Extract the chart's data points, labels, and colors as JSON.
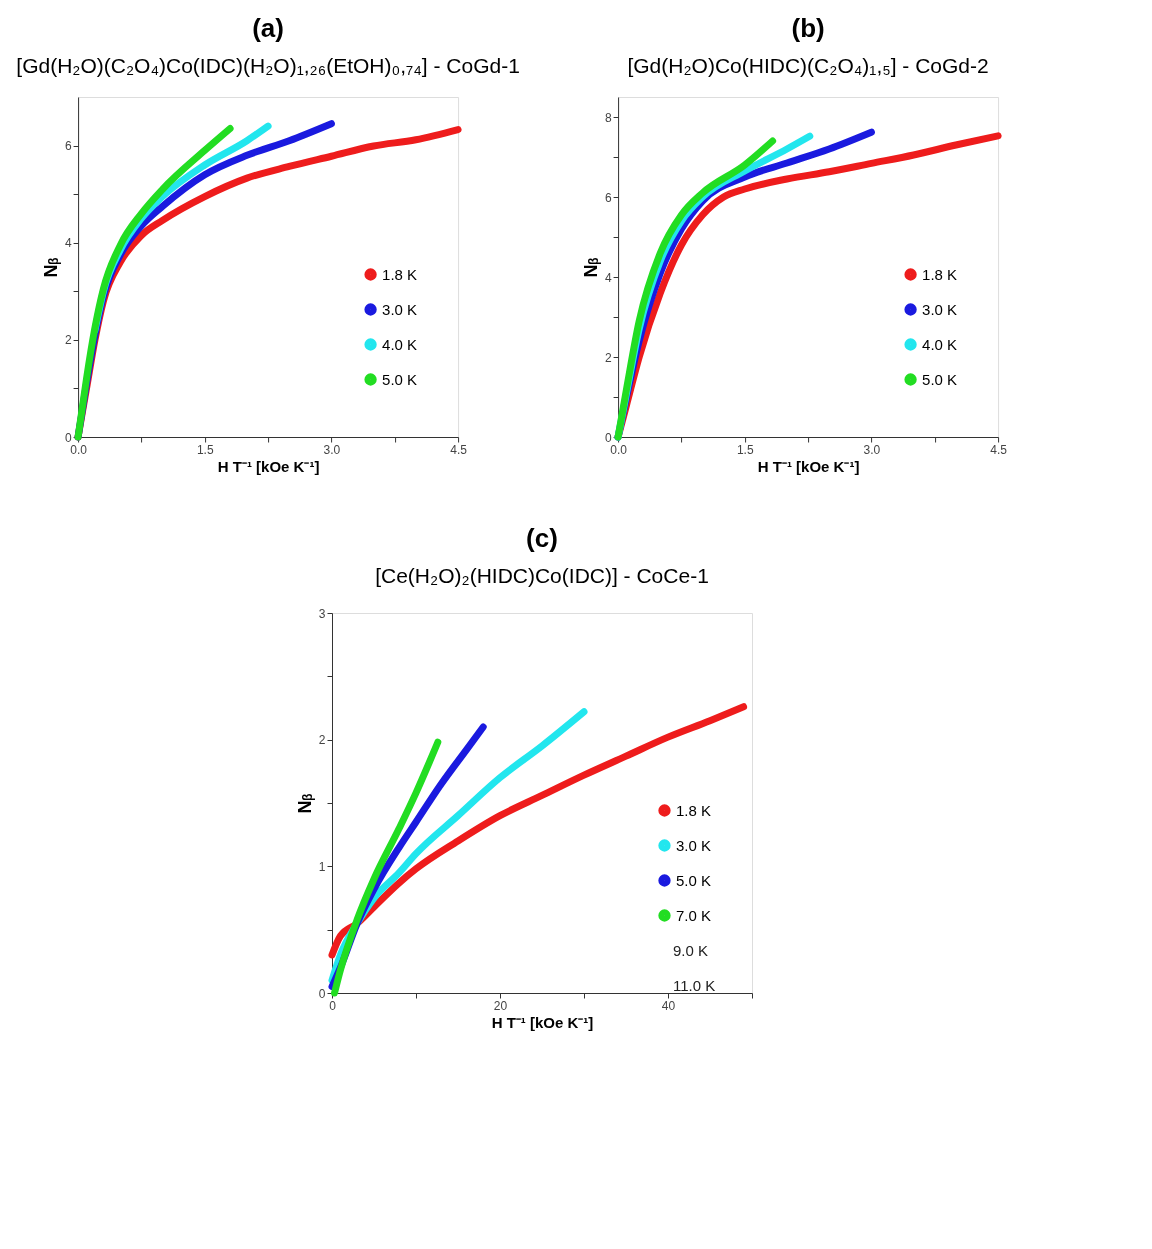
{
  "chart_data": [
    {
      "type": "line",
      "title": "(a)",
      "subtitle": "[Gd(H₂O)(C₂O₄)Co(IDC)(H₂O)₁,₂₆(EtOH)₀,₇₄] - CoGd-1",
      "xlabel": "H T⁻¹ [kOe K⁻¹]",
      "ylabel": "Nᵦ",
      "xlim": [
        0,
        4.5
      ],
      "xticks": [
        {
          "value": 0,
          "label": "0.0"
        },
        {
          "value": 0.75,
          "label": null
        },
        {
          "value": 1.5,
          "label": "1.5"
        },
        {
          "value": 2.25,
          "label": null
        },
        {
          "value": 3.0,
          "label": "3.0"
        },
        {
          "value": 3.75,
          "label": null
        },
        {
          "value": 4.5,
          "label": "4.5"
        }
      ],
      "ylim": [
        0,
        7
      ],
      "yticks": [
        0,
        {
          "value": 1,
          "label": null
        },
        2,
        {
          "value": 3,
          "label": null
        },
        4,
        {
          "value": 5,
          "label": null
        },
        6
      ],
      "grid": false,
      "legend": "bottom right",
      "marker": "none",
      "line_style": "solid",
      "series": [
        {
          "name": "1.8 K",
          "color": "#ee1c1c",
          "x": [
            0,
            0.05,
            0.1,
            0.2,
            0.3,
            0.5,
            0.75,
            1.0,
            1.5,
            2.0,
            2.5,
            3.0,
            3.5,
            4.0,
            4.5
          ],
          "values": [
            0,
            0.5,
            1.0,
            2.0,
            2.8,
            3.6,
            4.15,
            4.46,
            4.95,
            5.33,
            5.57,
            5.78,
            5.99,
            6.12,
            6.33
          ]
        },
        {
          "name": "3.0 K",
          "color": "#1a1adf",
          "x": [
            0,
            0.05,
            0.1,
            0.2,
            0.3,
            0.5,
            0.75,
            1.0,
            1.5,
            2.0,
            2.5,
            3.0
          ],
          "values": [
            0,
            0.55,
            1.1,
            2.1,
            2.9,
            3.75,
            4.35,
            4.75,
            5.4,
            5.8,
            6.1,
            6.45
          ]
        },
        {
          "name": "4.0 K",
          "color": "#22e6ee",
          "x": [
            0.2,
            0.3,
            0.5,
            0.75,
            1.0,
            1.5,
            2.0,
            2.25
          ],
          "values": [
            2.2,
            3.0,
            3.85,
            4.5,
            4.95,
            5.6,
            6.1,
            6.4
          ]
        },
        {
          "name": "5.0 K",
          "color": "#22dd22",
          "x": [
            0,
            0.05,
            0.1,
            0.2,
            0.3,
            0.5,
            0.75,
            1.0,
            1.5,
            1.8
          ],
          "values": [
            0,
            0.6,
            1.2,
            2.25,
            3.05,
            3.95,
            4.6,
            5.1,
            5.9,
            6.35
          ]
        }
      ]
    },
    {
      "type": "line",
      "title": "(b)",
      "subtitle": "[Gd(H₂O)Co(HIDC)(C₂O₄)₁,₅] - CoGd-2",
      "xlabel": "H T⁻¹ [kOe K⁻¹]",
      "ylabel": "Nᵦ",
      "xlim": [
        0,
        4.5
      ],
      "xticks": [
        {
          "value": 0,
          "label": "0.0"
        },
        {
          "value": 0.75,
          "label": null
        },
        {
          "value": 1.5,
          "label": "1.5"
        },
        {
          "value": 2.25,
          "label": null
        },
        {
          "value": 3.0,
          "label": "3.0"
        },
        {
          "value": 3.75,
          "label": null
        },
        {
          "value": 4.5,
          "label": "4.5"
        }
      ],
      "ylim": [
        0,
        8.5
      ],
      "yticks": [
        0,
        {
          "value": 1,
          "label": null
        },
        2,
        {
          "value": 3,
          "label": null
        },
        4,
        {
          "value": 5,
          "label": null
        },
        6,
        {
          "value": 7,
          "label": null
        },
        8
      ],
      "grid": false,
      "legend": "bottom right",
      "marker": "none",
      "line_style": "solid",
      "series": [
        {
          "name": "1.8  K",
          "color": "#ee1c1c",
          "x": [
            0,
            0.1,
            0.25,
            0.5,
            0.75,
            1.0,
            1.25,
            1.5,
            2.0,
            2.5,
            3.0,
            3.5,
            4.0,
            4.5
          ],
          "values": [
            0,
            0.8,
            2.0,
            3.6,
            4.8,
            5.55,
            6.0,
            6.2,
            6.45,
            6.63,
            6.84,
            7.05,
            7.3,
            7.53
          ]
        },
        {
          "name": "3.0 K",
          "color": "#1a1adf",
          "x": [
            0,
            0.1,
            0.25,
            0.5,
            0.75,
            1.0,
            1.5,
            2.0,
            2.5,
            3.0
          ],
          "values": [
            0,
            1.0,
            2.4,
            4.1,
            5.2,
            5.9,
            6.5,
            6.85,
            7.2,
            7.62
          ]
        },
        {
          "name": "4.0 K",
          "color": "#22e6ee",
          "x": [
            0,
            0.1,
            0.25,
            0.5,
            0.75,
            1.0,
            1.5,
            2.0,
            2.27
          ],
          "values": [
            0,
            1.1,
            2.7,
            4.4,
            5.4,
            6.0,
            6.65,
            7.2,
            7.52
          ]
        },
        {
          "name": "5.0 K",
          "color": "#22dd22",
          "x": [
            0,
            0.1,
            0.25,
            0.5,
            0.75,
            1.0,
            1.5,
            1.83
          ],
          "values": [
            0,
            1.2,
            2.9,
            4.6,
            5.55,
            6.1,
            6.8,
            7.4
          ]
        }
      ]
    },
    {
      "type": "line",
      "title": "(c)",
      "subtitle": "[Ce(H₂O)₂(HIDC)Co(IDC)] - CoCe-1",
      "xlabel": "H T⁻¹ [kOe K⁻¹]",
      "ylabel": "Nᵦ",
      "xlim": [
        0,
        50
      ],
      "xticks": [
        0,
        {
          "value": 10,
          "label": null
        },
        20,
        {
          "value": 30,
          "label": null
        },
        40,
        {
          "value": 50,
          "label": null
        }
      ],
      "ylim": [
        0,
        3
      ],
      "yticks": [
        0,
        {
          "value": 0.5,
          "label": null
        },
        1,
        {
          "value": 1.5,
          "label": null
        },
        2,
        {
          "value": 2.5,
          "label": null
        },
        3
      ],
      "grid": false,
      "legend": "bottom right",
      "marker": "none",
      "line_style": "solid",
      "annotations": [
        "9.0   K",
        "11.0 K"
      ],
      "series": [
        {
          "name": "1.8   K",
          "color": "#ee1c1c",
          "x": [
            0,
            1,
            3,
            5,
            8,
            10,
            15,
            20,
            25,
            30,
            35,
            40,
            45,
            49
          ],
          "values": [
            0.3,
            0.45,
            0.55,
            0.68,
            0.87,
            0.98,
            1.2,
            1.4,
            1.56,
            1.72,
            1.87,
            2.02,
            2.15,
            2.26
          ]
        },
        {
          "name": "3.0   K",
          "color": "#22e6ee",
          "x": [
            0,
            1,
            3,
            5,
            8,
            10,
            15,
            20,
            25,
            30
          ],
          "values": [
            0.1,
            0.3,
            0.55,
            0.75,
            0.95,
            1.1,
            1.4,
            1.7,
            1.95,
            2.22
          ]
        },
        {
          "name": "5.0   K",
          "color": "#1a1adf",
          "x": [
            0,
            1,
            3,
            5,
            8,
            10,
            13,
            16,
            18
          ],
          "values": [
            0.05,
            0.2,
            0.55,
            0.82,
            1.15,
            1.35,
            1.65,
            1.92,
            2.1
          ]
        },
        {
          "name": "7.0   K",
          "color": "#22dd22",
          "x": [
            0.3,
            1,
            3,
            5,
            8,
            10,
            12.6
          ],
          "values": [
            0,
            0.18,
            0.58,
            0.9,
            1.3,
            1.58,
            1.98
          ]
        }
      ]
    }
  ]
}
